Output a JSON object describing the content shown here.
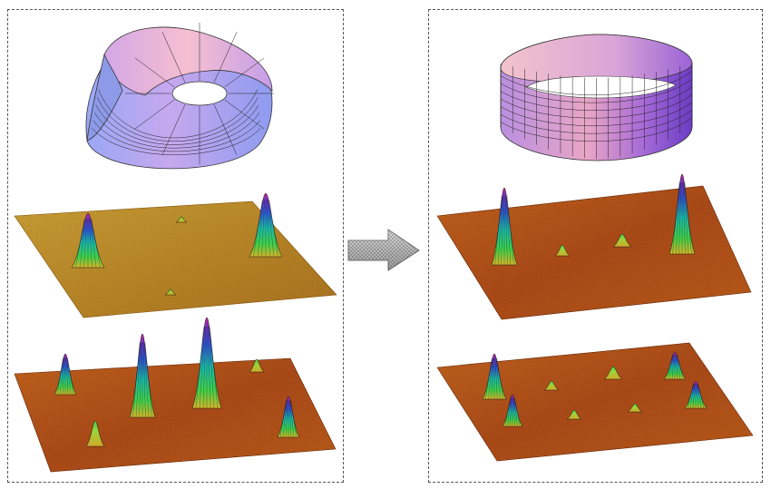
{
  "figure": {
    "left_panel": {
      "top_item": "mobius-strip",
      "surfaces": [
        "spectral-surface-two-peaks",
        "spectral-surface-many-peaks"
      ]
    },
    "right_panel": {
      "top_item": "cylindrical-band",
      "surfaces": [
        "spectral-surface-two-tall-peaks",
        "spectral-surface-several-peaks"
      ]
    },
    "arrow_direction": "right",
    "colors": {
      "border": "#555555",
      "mobius_pink": "#f4b7c9",
      "mobius_blue": "#9aa7f5",
      "band_pink": "#f2b9c6",
      "band_purple": "#8d58d6",
      "surface_gold": "#c99a2e",
      "surface_orange": "#c05a1c",
      "peak_green": "#25c45a",
      "peak_blue": "#2f58d8",
      "peak_magenta": "#b0258f"
    }
  }
}
